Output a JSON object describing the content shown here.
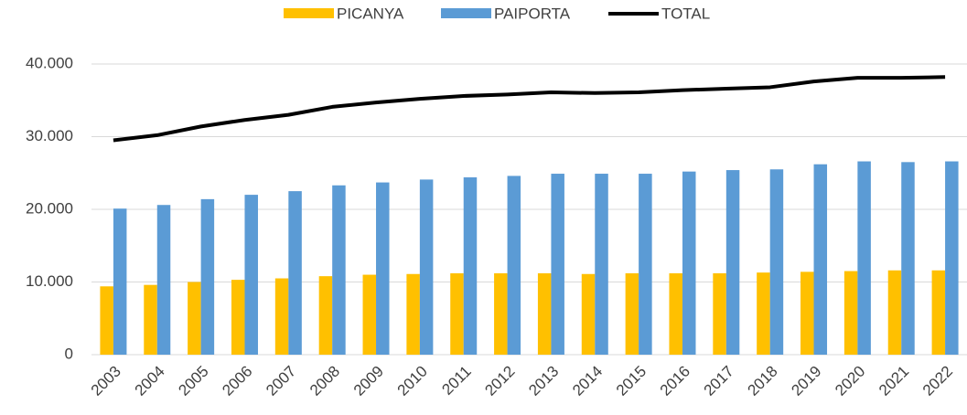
{
  "chart_data": {
    "type": "bar_line",
    "categories": [
      "2003",
      "2004",
      "2005",
      "2006",
      "2007",
      "2008",
      "2009",
      "2010",
      "2011",
      "2012",
      "2013",
      "2014",
      "2015",
      "2016",
      "2017",
      "2018",
      "2019",
      "2020",
      "2021",
      "2022"
    ],
    "series": [
      {
        "name": "PICANYA",
        "type": "bar",
        "color": "#FFC000",
        "values": [
          9400,
          9600,
          10000,
          10300,
          10500,
          10800,
          11000,
          11100,
          11200,
          11200,
          11200,
          11100,
          11200,
          11200,
          11200,
          11300,
          11400,
          11500,
          11600,
          11600
        ]
      },
      {
        "name": "PAIPORTA",
        "type": "bar",
        "color": "#5B9BD5",
        "values": [
          20100,
          20600,
          21400,
          22000,
          22500,
          23300,
          23700,
          24100,
          24400,
          24600,
          24900,
          24900,
          24900,
          25200,
          25400,
          25500,
          26200,
          26600,
          26500,
          26600
        ]
      },
      {
        "name": "TOTAL",
        "type": "line",
        "color": "#000000",
        "values": [
          29500,
          30200,
          31400,
          32300,
          33000,
          34100,
          34700,
          35200,
          35600,
          35800,
          36100,
          36000,
          36100,
          36400,
          36600,
          36800,
          37600,
          38100,
          38100,
          38200
        ]
      }
    ],
    "ylim": [
      0,
      40000
    ],
    "yticks": [
      0,
      {
        "value": 10000,
        "label": "10.000"
      },
      {
        "value": 20000,
        "label": "20.000"
      },
      {
        "value": 30000,
        "label": "30.000"
      },
      {
        "value": 40000,
        "label": "40.000"
      }
    ],
    "grid": true,
    "legend": "top"
  }
}
